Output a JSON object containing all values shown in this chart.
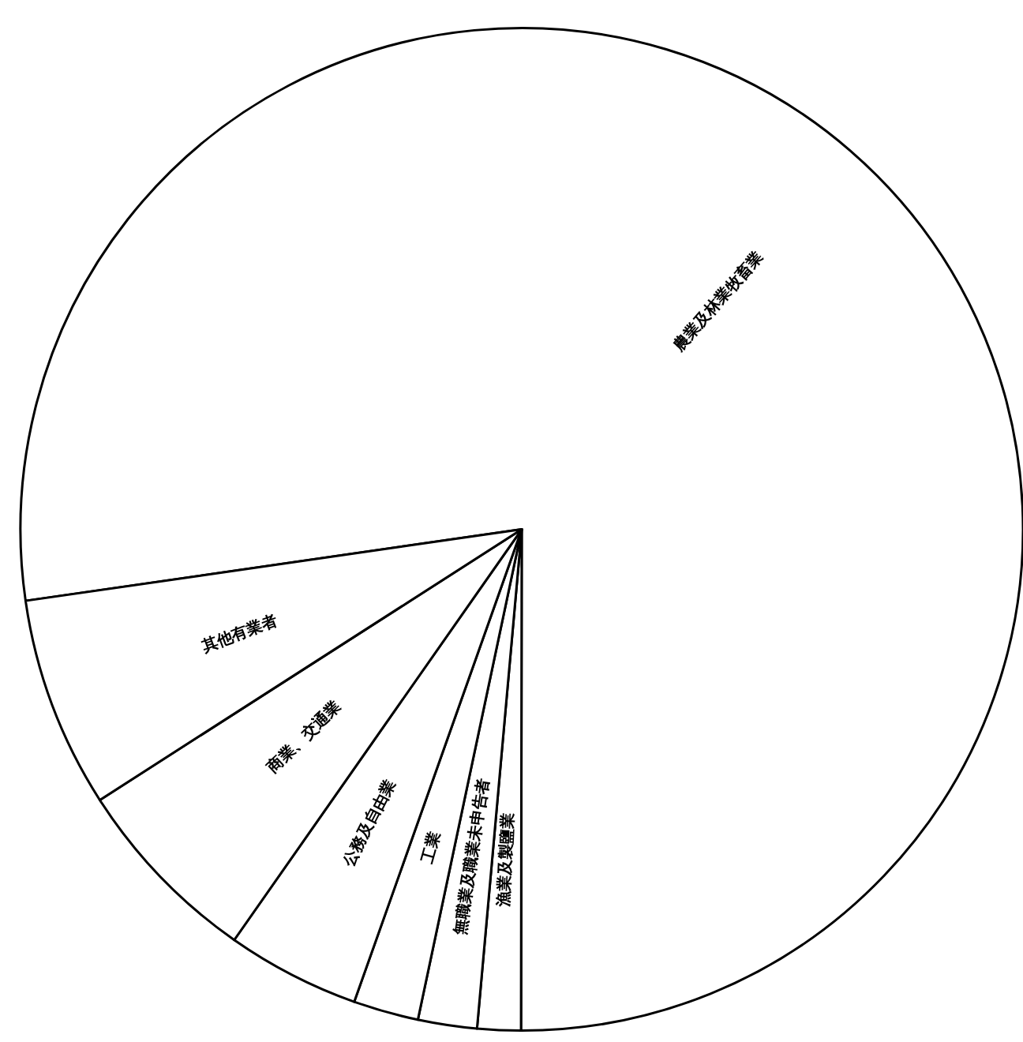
{
  "chart_data": {
    "type": "pie",
    "categories": [
      "農業及林業牧畜業",
      "漁業及製鹽業",
      "無職業及職業未申告者",
      "工業",
      "公務及自由業",
      "商業、交通業",
      "其他有業者"
    ],
    "values": [
      77.3,
      1.4,
      1.9,
      2.1,
      4.3,
      6.2,
      6.8
    ],
    "colors": [
      "#ffffff",
      "#ffffff",
      "#ffffff",
      "#ffffff",
      "#ffffff",
      "#ffffff",
      "#ffffff"
    ]
  }
}
